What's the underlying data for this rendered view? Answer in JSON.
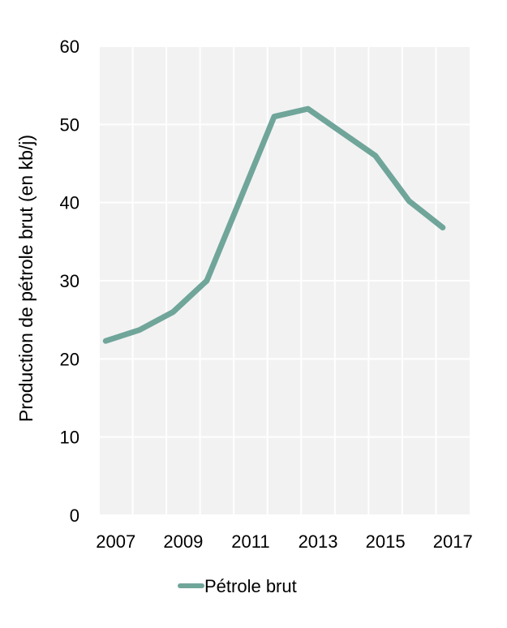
{
  "chart_data": {
    "type": "line",
    "ylabel": "Production de pétrole brut (en kb/j)",
    "xlim": [
      2006.5,
      2017.5
    ],
    "ylim": [
      0,
      60
    ],
    "x_ticks": [
      "2007",
      "2009",
      "2011",
      "2013",
      "2015",
      "2017"
    ],
    "y_ticks": [
      "0",
      "10",
      "20",
      "30",
      "40",
      "50",
      "60"
    ],
    "grid": true,
    "legend": "bottom",
    "series": [
      {
        "name": "Pétrole brut",
        "color": "#70a59a",
        "x": [
          2006.7,
          2007.7,
          2008.7,
          2009.7,
          2010.7,
          2011.7,
          2012.7,
          2013.7,
          2014.7,
          2015.7,
          2016.7
        ],
        "y": [
          22.3,
          23.7,
          26.0,
          30.0,
          40.5,
          51.0,
          52.0,
          49.0,
          46.0,
          40.2,
          36.8
        ]
      }
    ]
  }
}
